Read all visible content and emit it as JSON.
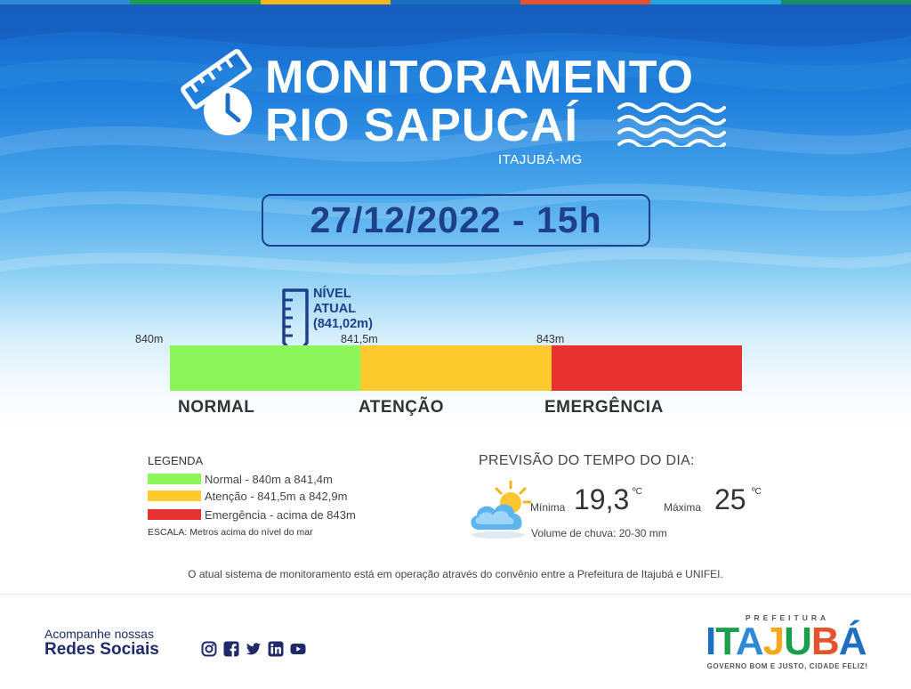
{
  "colors": {
    "stripe": [
      "#2e8ad6",
      "#1b9e4b",
      "#f5b71b",
      "#1e6fbf",
      "#e6522b",
      "#2aa3d8",
      "#1b8f62"
    ],
    "navy": "#1e3f8a",
    "green": "#8cf55a",
    "yellow": "#fecb2e",
    "red": "#e83232"
  },
  "header": {
    "title_line1": "MONITORAMENTO",
    "title_line2": "RIO SAPUCAÍ",
    "subtitle": "ITAJUBÁ-MG",
    "title_icon": "ruler-clock-icon",
    "water_icon": "water-waves-icon"
  },
  "datetime": "27/12/2022 - 15h",
  "level": {
    "indicator_line1": "NÍVEL",
    "indicator_line2": "ATUAL",
    "indicator_value": "(841,02m)",
    "current_m": 841.02,
    "ticks": [
      "840m",
      "841,5m",
      "843m"
    ],
    "zones": [
      "NORMAL",
      "ATENÇÃO",
      "EMERGÊNCIA"
    ],
    "gauge_icon": "measuring-gauge-icon"
  },
  "legend": {
    "title": "LEGENDA",
    "items": [
      {
        "label": "Normal - 840m a 841,4m",
        "color": "#8cf55a"
      },
      {
        "label": "Atenção - 841,5m a 842,9m",
        "color": "#fecb2e"
      },
      {
        "label": "Emergência - acima de 843m",
        "color": "#e83232"
      }
    ],
    "escala": "ESCALA: Metros acima do nível do mar"
  },
  "forecast": {
    "title": "PREVISÃO DO TEMPO DO DIA:",
    "icon": "partly-cloudy-icon",
    "min_label": "Mínima",
    "min_value": "19,3",
    "max_label": "Máxima",
    "max_value": "25",
    "unit": "ºC",
    "rain": "Volume de chuva: 20-30 mm"
  },
  "footnote": "O atual sistema de monitoramento está em operação através do convênio entre a Prefeitura de Itajubá e UNIFEI.",
  "footer": {
    "social_small": "Acompanhe nossas",
    "social_big": "Redes Sociais",
    "social_icons": [
      "instagram-icon",
      "facebook-icon",
      "twitter-icon",
      "linkedin-icon",
      "youtube-icon"
    ],
    "logo_top": "PREFEITURA",
    "logo_letters": [
      "I",
      "T",
      "A",
      "J",
      "U",
      "B",
      "Á"
    ],
    "logo_colors": [
      "#1e6fbf",
      "#1b9e4b",
      "#2e8ad6",
      "#f5a81b",
      "#1b9e4b",
      "#e6522b",
      "#1e6fbf"
    ],
    "logo_tagline": "GOVERNO BOM E JUSTO, CIDADE FELIZ!"
  }
}
